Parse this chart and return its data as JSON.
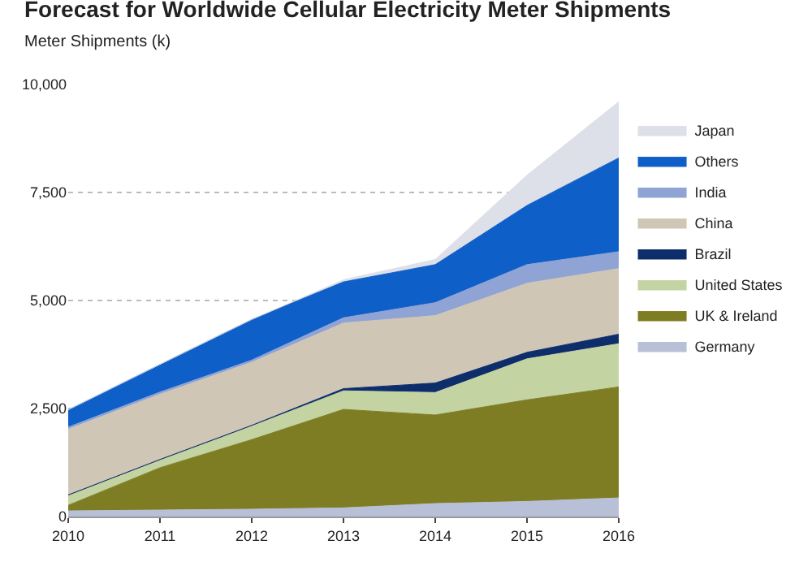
{
  "chart_data": {
    "type": "area",
    "stacked": true,
    "title": "Forecast for Worldwide Cellular Electricity Meter Shipments",
    "subtitle": "Meter Shipments (k)",
    "x": [
      2010,
      2011,
      2012,
      2013,
      2014,
      2015,
      2016
    ],
    "xlim": [
      2010,
      2016
    ],
    "xticks": [
      2010,
      2011,
      2012,
      2013,
      2014,
      2015,
      2016
    ],
    "ylim": [
      0,
      10000
    ],
    "yticks": [
      {
        "value": 0,
        "label": "0"
      },
      {
        "value": 2500,
        "label": "2,500"
      },
      {
        "value": 5000,
        "label": "5,000"
      },
      {
        "value": 7500,
        "label": "7,500"
      },
      {
        "value": 10000,
        "label": "10,000"
      }
    ],
    "grid": "y",
    "legend": "right",
    "series": [
      {
        "name": "Germany",
        "color": "#b8c0d8",
        "values": [
          130,
          150,
          170,
          200,
          300,
          350,
          430
        ]
      },
      {
        "name": "UK & Ireland",
        "color": "#7f7d24",
        "values": [
          130,
          980,
          1610,
          2280,
          2050,
          2350,
          2570
        ]
      },
      {
        "name": "United States",
        "color": "#c3d3a2",
        "values": [
          220,
          170,
          310,
          430,
          520,
          950,
          1000
        ]
      },
      {
        "name": "Brazil",
        "color": "#0d2d6b",
        "values": [
          20,
          20,
          20,
          50,
          220,
          150,
          220
        ]
      },
      {
        "name": "China",
        "color": "#cfc6b6",
        "values": [
          1520,
          1510,
          1460,
          1520,
          1560,
          1600,
          1520
        ]
      },
      {
        "name": "India",
        "color": "#8fa3d4",
        "values": [
          50,
          50,
          50,
          120,
          300,
          430,
          390
        ]
      },
      {
        "name": "Others",
        "color": "#0f5fc8",
        "values": [
          400,
          640,
          940,
          830,
          880,
          1370,
          2170
        ]
      },
      {
        "name": "Japan",
        "color": "#dde0e8",
        "values": [
          0,
          0,
          0,
          50,
          120,
          700,
          1300
        ]
      }
    ]
  }
}
